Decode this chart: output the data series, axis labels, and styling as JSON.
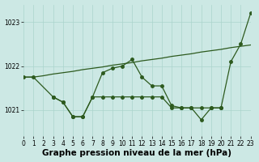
{
  "bg_color": "#cce8e4",
  "line_color": "#2d5a1e",
  "grid_color": "#aad4cc",
  "title": "Graphe pression niveau de la mer (hPa)",
  "ylim": [
    1020.4,
    1023.4
  ],
  "xlim": [
    0,
    23
  ],
  "yticks": [
    1021,
    1022,
    1023
  ],
  "xticks": [
    0,
    1,
    2,
    3,
    4,
    5,
    6,
    7,
    8,
    9,
    10,
    11,
    12,
    13,
    14,
    15,
    16,
    17,
    18,
    19,
    20,
    21,
    22,
    23
  ],
  "series1_x": [
    0,
    1,
    2,
    3,
    4,
    5,
    6,
    7,
    8,
    9,
    10,
    11,
    12,
    13,
    14,
    15,
    16,
    17,
    18,
    19,
    20,
    21,
    22,
    23
  ],
  "series1_y": [
    1021.75,
    1021.75,
    1021.78,
    1021.82,
    1021.85,
    1021.88,
    1021.92,
    1021.95,
    1021.98,
    1022.02,
    1022.05,
    1022.08,
    1022.12,
    1022.15,
    1022.18,
    1022.22,
    1022.25,
    1022.28,
    1022.32,
    1022.35,
    1022.38,
    1022.42,
    1022.45,
    1022.48
  ],
  "series2_x": [
    0,
    1,
    3,
    4,
    5,
    6,
    7,
    8,
    9,
    10,
    11,
    12,
    13,
    14,
    15,
    16,
    17,
    18,
    19,
    20,
    21,
    22,
    23
  ],
  "series2_y": [
    1021.75,
    1021.75,
    1021.3,
    1021.18,
    1020.85,
    1020.85,
    1021.3,
    1021.85,
    1021.95,
    1022.0,
    1022.15,
    1021.75,
    1021.55,
    1021.55,
    1021.1,
    1021.05,
    1021.05,
    1020.78,
    1021.05,
    1021.05,
    1022.1,
    1022.5,
    1023.2
  ],
  "series3_x": [
    3,
    4,
    5,
    6,
    7,
    8,
    9,
    10,
    11,
    12,
    13,
    14,
    15,
    16,
    17,
    18,
    19,
    20
  ],
  "series3_y": [
    1021.3,
    1021.18,
    1020.85,
    1020.85,
    1021.3,
    1021.3,
    1021.3,
    1021.3,
    1021.3,
    1021.3,
    1021.3,
    1021.3,
    1021.05,
    1021.05,
    1021.05,
    1021.05,
    1021.05,
    1021.05
  ],
  "title_fontsize": 7.5,
  "tick_fontsize": 5.5
}
